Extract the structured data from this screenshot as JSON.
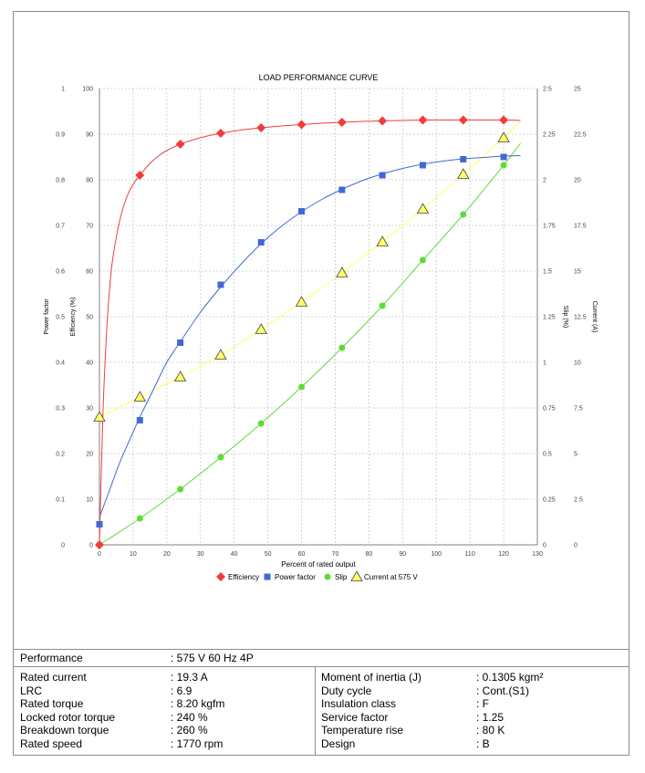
{
  "chart_data": {
    "type": "line",
    "title": "LOAD PERFORMANCE CURVE",
    "xlabel": "Percent of rated output",
    "xlim": [
      0,
      130
    ],
    "x_ticks": [
      "0",
      "10",
      "20",
      "30",
      "40",
      "50",
      "60",
      "70",
      "80",
      "90",
      "100",
      "110",
      "120",
      "130"
    ],
    "axes": {
      "power_factor": {
        "label": "Power factor",
        "ylim": [
          0,
          1
        ],
        "ticks": [
          "0",
          "0.1",
          "0.2",
          "0.3",
          "0.4",
          "0.5",
          "0.6",
          "0.7",
          "0.8",
          "0.9",
          "1"
        ]
      },
      "efficiency": {
        "label": "Efficiency (%)",
        "ylim": [
          0,
          100
        ],
        "ticks": [
          "0",
          "10",
          "20",
          "30",
          "40",
          "50",
          "60",
          "70",
          "80",
          "90",
          "100"
        ]
      },
      "slip": {
        "label": "Slip (%)",
        "ylim": [
          0,
          2.5
        ],
        "ticks": [
          "0",
          "0.25",
          "0.5",
          "0.75",
          "1",
          "1.25",
          "1.5",
          "1.75",
          "2",
          "2.25",
          "2.5"
        ]
      },
      "current": {
        "label": "Current (A)",
        "ylim": [
          0,
          25
        ],
        "ticks": [
          "0",
          "2.5",
          "5",
          "7.5",
          "10",
          "12.5",
          "15",
          "17.5",
          "20",
          "22.5",
          "25"
        ]
      }
    },
    "grid": true,
    "legend_position": "bottom",
    "series": [
      {
        "name": "Efficiency",
        "axis": "efficiency",
        "color": "#f03c3c",
        "marker": "diamond",
        "x": [
          0,
          12,
          24,
          36,
          48,
          60,
          72,
          84,
          96,
          108,
          120
        ],
        "y": [
          0,
          81,
          87.8,
          90.2,
          91.4,
          92.1,
          92.6,
          92.9,
          93.1,
          93.1,
          93.1
        ],
        "curve_x": [
          0,
          1,
          2,
          3,
          4,
          6,
          8,
          10,
          12,
          15,
          18,
          21,
          24,
          28,
          32,
          36,
          42,
          48,
          54,
          60,
          66,
          72,
          78,
          84,
          90,
          96,
          102,
          108,
          114,
          120,
          125
        ],
        "curve_y": [
          0,
          28,
          45,
          56,
          63,
          71,
          76,
          79,
          81,
          83.6,
          85.5,
          86.8,
          87.8,
          88.8,
          89.6,
          90.2,
          90.9,
          91.4,
          91.8,
          92.1,
          92.4,
          92.6,
          92.8,
          92.9,
          93.0,
          93.1,
          93.1,
          93.1,
          93.1,
          93.1,
          93.0
        ]
      },
      {
        "name": "Power factor",
        "axis": "power_factor",
        "color": "#4169d2",
        "marker": "square",
        "x": [
          0,
          12,
          24,
          36,
          48,
          60,
          72,
          84,
          96,
          108,
          120
        ],
        "y": [
          0.045,
          0.273,
          0.443,
          0.57,
          0.663,
          0.731,
          0.778,
          0.81,
          0.832,
          0.845,
          0.85
        ],
        "curve_x": [
          0,
          3,
          6,
          9,
          12,
          16,
          20,
          24,
          30,
          36,
          42,
          48,
          54,
          60,
          66,
          72,
          78,
          84,
          90,
          96,
          102,
          108,
          114,
          120,
          125
        ],
        "curve_y": [
          0.06,
          0.12,
          0.18,
          0.23,
          0.28,
          0.34,
          0.4,
          0.445,
          0.51,
          0.565,
          0.615,
          0.66,
          0.698,
          0.73,
          0.757,
          0.779,
          0.798,
          0.813,
          0.825,
          0.834,
          0.841,
          0.846,
          0.849,
          0.852,
          0.853
        ]
      },
      {
        "name": "Slip",
        "axis": "slip",
        "color": "#5ddb3a",
        "marker": "circle",
        "x": [
          0,
          12,
          24,
          36,
          48,
          60,
          72,
          84,
          96,
          108,
          120
        ],
        "y": [
          0,
          0.145,
          0.305,
          0.48,
          0.665,
          0.865,
          1.08,
          1.31,
          1.56,
          1.81,
          2.08
        ],
        "curve_x": [
          0,
          12,
          24,
          36,
          48,
          60,
          72,
          84,
          96,
          108,
          120,
          125
        ],
        "curve_y": [
          0,
          0.145,
          0.305,
          0.48,
          0.665,
          0.865,
          1.08,
          1.31,
          1.56,
          1.81,
          2.08,
          2.2
        ]
      },
      {
        "name": "Current at 575 V",
        "axis": "current",
        "color": "#ffff66",
        "marker": "triangle",
        "x": [
          0,
          12,
          24,
          36,
          48,
          60,
          72,
          84,
          96,
          108,
          120
        ],
        "y": [
          7,
          8.1,
          9.2,
          10.4,
          11.8,
          13.3,
          14.9,
          16.6,
          18.4,
          20.3,
          22.3
        ],
        "curve_x": [
          0,
          12,
          24,
          36,
          48,
          60,
          72,
          84,
          96,
          108,
          120,
          125
        ],
        "curve_y": [
          7,
          8.1,
          9.2,
          10.4,
          11.8,
          13.3,
          14.9,
          16.6,
          18.4,
          20.3,
          22.3,
          23.2
        ]
      }
    ]
  },
  "performance": {
    "label": "Performance",
    "value": ": 575 V 60 Hz 4P"
  },
  "specs_left": [
    {
      "label": "Rated current",
      "value": ": 19.3 A"
    },
    {
      "label": "LRC",
      "value": ": 6.9"
    },
    {
      "label": "Rated torque",
      "value": ": 8.20 kgfm"
    },
    {
      "label": "Locked rotor torque",
      "value": ": 240 %"
    },
    {
      "label": "Breakdown torque",
      "value": ": 260 %"
    },
    {
      "label": "Rated speed",
      "value": ": 1770 rpm"
    }
  ],
  "specs_right": [
    {
      "label": "Moment of inertia (J)",
      "value": ": 0.1305 kgm²"
    },
    {
      "label": "Duty cycle",
      "value": ": Cont.(S1)"
    },
    {
      "label": "Insulation class",
      "value": ": F"
    },
    {
      "label": "Service factor",
      "value": ": 1.25"
    },
    {
      "label": "Temperature rise",
      "value": ": 80 K"
    },
    {
      "label": "Design",
      "value": ": B"
    }
  ]
}
